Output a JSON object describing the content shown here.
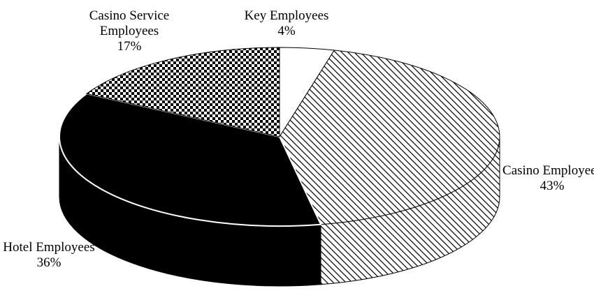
{
  "chart_data": {
    "type": "pie3d",
    "categories": [
      "Key Employees",
      "Casino Employees",
      "Hotel Employees",
      "Casino Service Employees"
    ],
    "values": [
      4,
      43,
      36,
      17
    ],
    "value_labels": [
      "4%",
      "43%",
      "36%",
      "17%"
    ]
  }
}
